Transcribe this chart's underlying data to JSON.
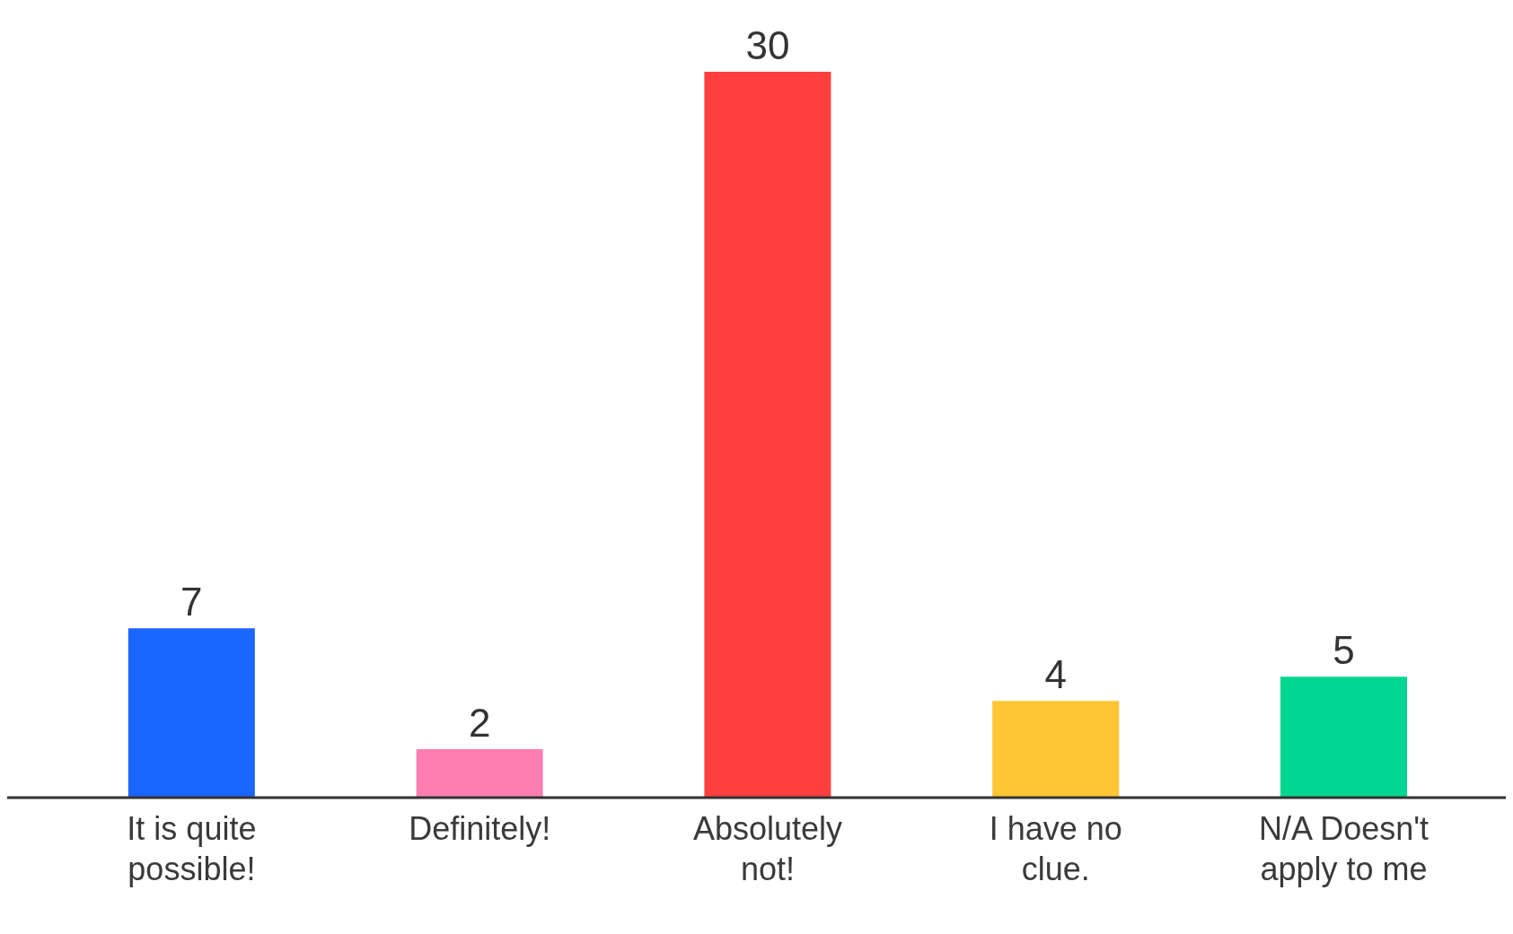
{
  "chart_data": {
    "type": "bar",
    "categories": [
      "It is quite possible!",
      "Definitely!",
      "Absolutely not!",
      "I have no clue.",
      "N/A Doesn't apply to me"
    ],
    "values": [
      7,
      2,
      30,
      4,
      5
    ],
    "colors": [
      "#1a66ff",
      "#ff7eb0",
      "#ff3e3e",
      "#ffc533",
      "#00d68f"
    ],
    "data_labels": true,
    "grid": false,
    "legend": false
  }
}
